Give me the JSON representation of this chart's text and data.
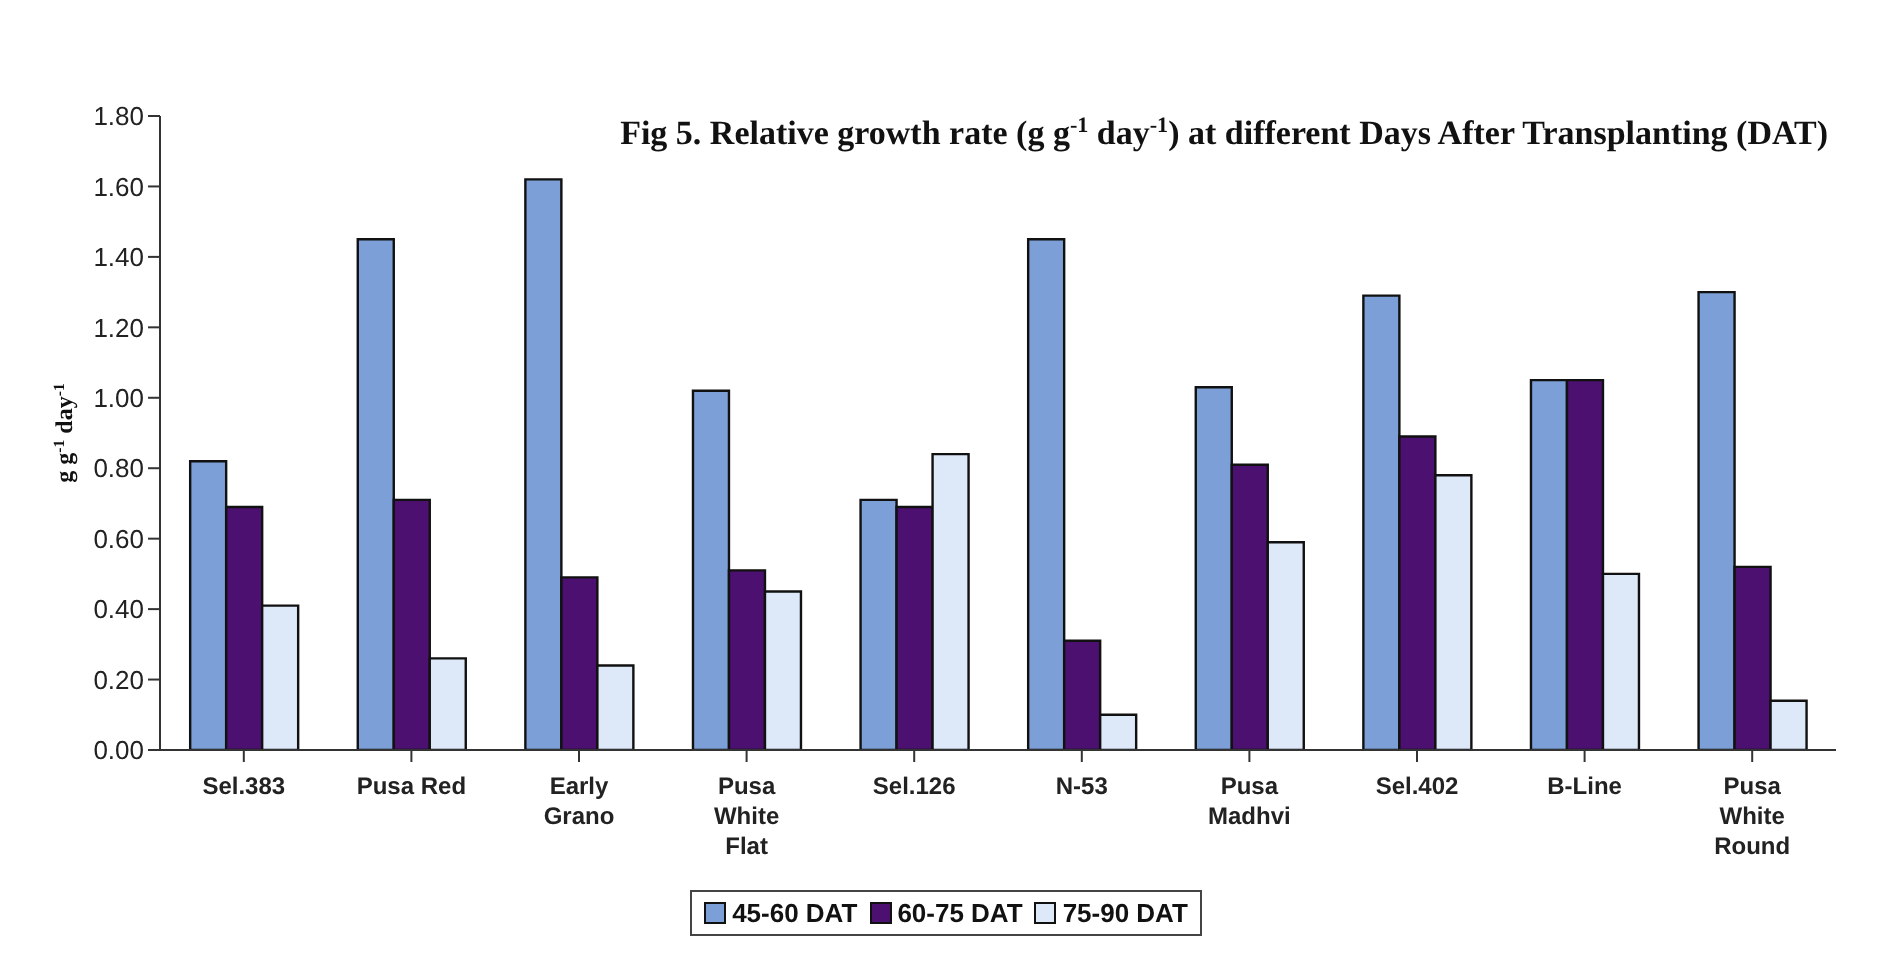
{
  "chart_data": {
    "type": "bar",
    "title": "Fig 5. Relative growth rate (g g$^{-1}$ day$^{-1}$) at different Days After Transplanting (DAT)",
    "ylabel": "g g$^{-1}$ day$^{-1}$",
    "categories": [
      "Sel.383",
      "Pusa Red",
      "Early Grano",
      "Pusa White Flat",
      "Sel.126",
      "N-53",
      "Pusa Madhvi",
      "Sel.402",
      "B-Line",
      "Pusa White Round"
    ],
    "series": [
      {
        "name": "45-60 DAT",
        "color": "#7b9fd6",
        "values": [
          0.82,
          1.45,
          1.62,
          1.02,
          0.71,
          1.45,
          1.03,
          1.29,
          1.05,
          1.3
        ]
      },
      {
        "name": "60-75 DAT",
        "color": "#4b1070",
        "values": [
          0.69,
          0.71,
          0.49,
          0.51,
          0.69,
          0.31,
          0.81,
          0.89,
          1.05,
          0.52
        ]
      },
      {
        "name": "75-90 DAT",
        "color": "#dde8f8",
        "values": [
          0.41,
          0.26,
          0.24,
          0.45,
          0.84,
          0.1,
          0.59,
          0.78,
          0.5,
          0.14
        ]
      }
    ],
    "ylim": [
      0,
      1.8
    ],
    "yticks": [
      {
        "value": 0,
        "label": "0.00"
      },
      {
        "value": 0.2,
        "label": "0.20"
      },
      {
        "value": 0.4,
        "label": "0.40"
      },
      {
        "value": 0.6,
        "label": "0.60"
      },
      {
        "value": 0.8,
        "label": "0.80"
      },
      {
        "value": 1.0,
        "label": "1.00"
      },
      {
        "value": 1.2,
        "label": "1.20"
      },
      {
        "value": 1.4,
        "label": "1.40"
      },
      {
        "value": 1.6,
        "label": "1.60"
      },
      {
        "value": 1.8,
        "label": "1.80"
      }
    ],
    "grid": false,
    "legend": "bottom"
  }
}
